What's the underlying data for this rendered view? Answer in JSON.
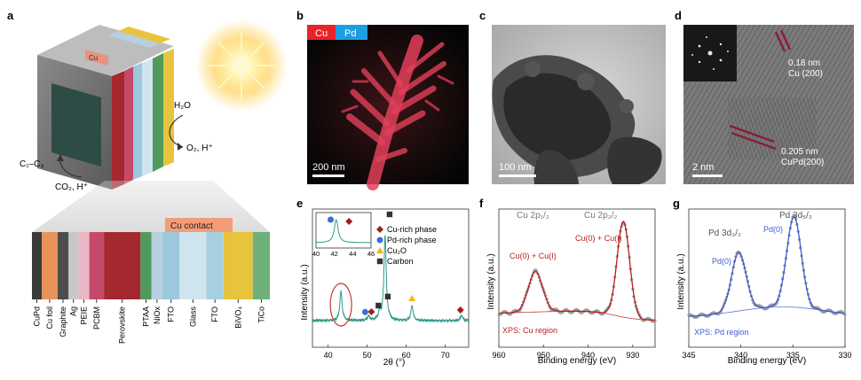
{
  "panels": {
    "a": {
      "letter": "a",
      "cu_tab": "Cu",
      "h2o": "H₂O",
      "o2": "O₂, H⁺",
      "c1c3": "C₁–C₃",
      "co2": "CO₂, H⁺",
      "contact": "Cu contact",
      "layers": [
        {
          "label": "CuPd",
          "color": "#3a3a3a"
        },
        {
          "label": "Cu foil",
          "color": "#e8935a"
        },
        {
          "label": "Graphite",
          "color": "#4d4d4d"
        },
        {
          "label": "Ag",
          "color": "#c8c8c8"
        },
        {
          "label": "PEIE",
          "color": "#e9b8c4"
        },
        {
          "label": "PCBM",
          "color": "#c54a6a"
        },
        {
          "label": "Perovskite",
          "color": "#a5282e"
        },
        {
          "label": "PTAA",
          "color": "#4f9a5c"
        },
        {
          "label": "NiOx",
          "color": "#b8cfe0"
        },
        {
          "label": "FTO",
          "color": "#9cc8de"
        },
        {
          "label": "Glass",
          "color": "#cfe4ef"
        },
        {
          "label": "FTO",
          "color": "#a7cfe2"
        },
        {
          "label": "BiVO₄",
          "color": "#e8c33e"
        },
        {
          "label": "TiCo",
          "color": "#6fb07a"
        }
      ]
    },
    "b": {
      "letter": "b",
      "tag_cu": "Cu",
      "tag_pd": "Pd",
      "scale": "200 nm",
      "cu_color": "#e8242a",
      "pd_color": "#1e9ee0"
    },
    "c": {
      "letter": "c",
      "scale": "100 nm"
    },
    "d": {
      "letter": "d",
      "lattice1_a": "0.18 nm",
      "lattice1_b": "Cu (200)",
      "lattice2_a": "0.205 nm",
      "lattice2_b": "CuPd(200)",
      "scale": "2 nm"
    },
    "e": {
      "letter": "e",
      "legend": [
        {
          "label": "Cu-rich phase",
          "marker": "diamond",
          "color": "#a11d1d"
        },
        {
          "label": "Pd-rich phase",
          "marker": "circle",
          "color": "#3a6fd8"
        },
        {
          "label": "Cu₂O",
          "marker": "triangle",
          "color": "#f2b51a"
        },
        {
          "label": "Carbon",
          "marker": "square",
          "color": "#333333"
        }
      ]
    },
    "f": {
      "letter": "f",
      "peak_left": "Cu 2p₁/₂",
      "peak_right": "Cu 2p₃/₂",
      "label_left": "Cu(0) + Cu(I)",
      "label_right": "Cu(0) + Cu(I)",
      "region": "XPS: Cu region"
    },
    "g": {
      "letter": "g",
      "peak_left": "Pd 3d₃/₂",
      "peak_right": "Pd 3d₅/₂",
      "label_left": "Pd(0)",
      "label_right": "Pd(0)",
      "region": "XPS: Pd region"
    }
  },
  "chart_data": [
    {
      "panel": "e",
      "type": "line",
      "xlabel": "2θ (°)",
      "ylabel": "Intensity (a.u.)",
      "xlim": [
        36,
        76
      ],
      "xticks": [
        40,
        50,
        60,
        70
      ],
      "line_color": "#2f9a8a",
      "peaks": [
        {
          "x": 43.3,
          "height": 0.55
        },
        {
          "x": 50.4,
          "height": 0.08
        },
        {
          "x": 53.2,
          "height": 0.15
        },
        {
          "x": 54.6,
          "height": 1.6
        },
        {
          "x": 61.5,
          "height": 0.28
        },
        {
          "x": 74.2,
          "height": 0.1
        }
      ],
      "markers": [
        {
          "x": 49.5,
          "marker": "circle"
        },
        {
          "x": 51.1,
          "marker": "diamond"
        },
        {
          "x": 52.9,
          "marker": "square"
        },
        {
          "x": 55.3,
          "marker": "square"
        },
        {
          "x": 61.5,
          "marker": "triangle"
        },
        {
          "x": 73.9,
          "marker": "diamond"
        }
      ],
      "inset": {
        "xlim": [
          40,
          46
        ],
        "xticks": [
          40,
          42,
          44,
          46
        ],
        "peak_x": 42.2
      }
    },
    {
      "panel": "f",
      "type": "line",
      "xlabel": "Binding energy (eV)",
      "ylabel": "Intensity (a.u.)",
      "xlim": [
        960,
        925
      ],
      "xticks": [
        960,
        950,
        940,
        930
      ],
      "fit_color": "#b81f1f",
      "peaks": [
        {
          "x": 951.8,
          "height": 0.38,
          "width": 1.6
        },
        {
          "x": 932.1,
          "height": 0.9,
          "width": 1.4
        }
      ]
    },
    {
      "panel": "g",
      "type": "line",
      "xlabel": "Binding energy (eV)",
      "ylabel": "Intensity (a.u.)",
      "xlim": [
        345,
        330
      ],
      "xticks": [
        345,
        340,
        335,
        330
      ],
      "fit_color": "#3d5bd6",
      "peaks": [
        {
          "x": 340.2,
          "height": 0.55,
          "width": 0.7
        },
        {
          "x": 334.9,
          "height": 0.85,
          "width": 0.7
        }
      ]
    }
  ]
}
